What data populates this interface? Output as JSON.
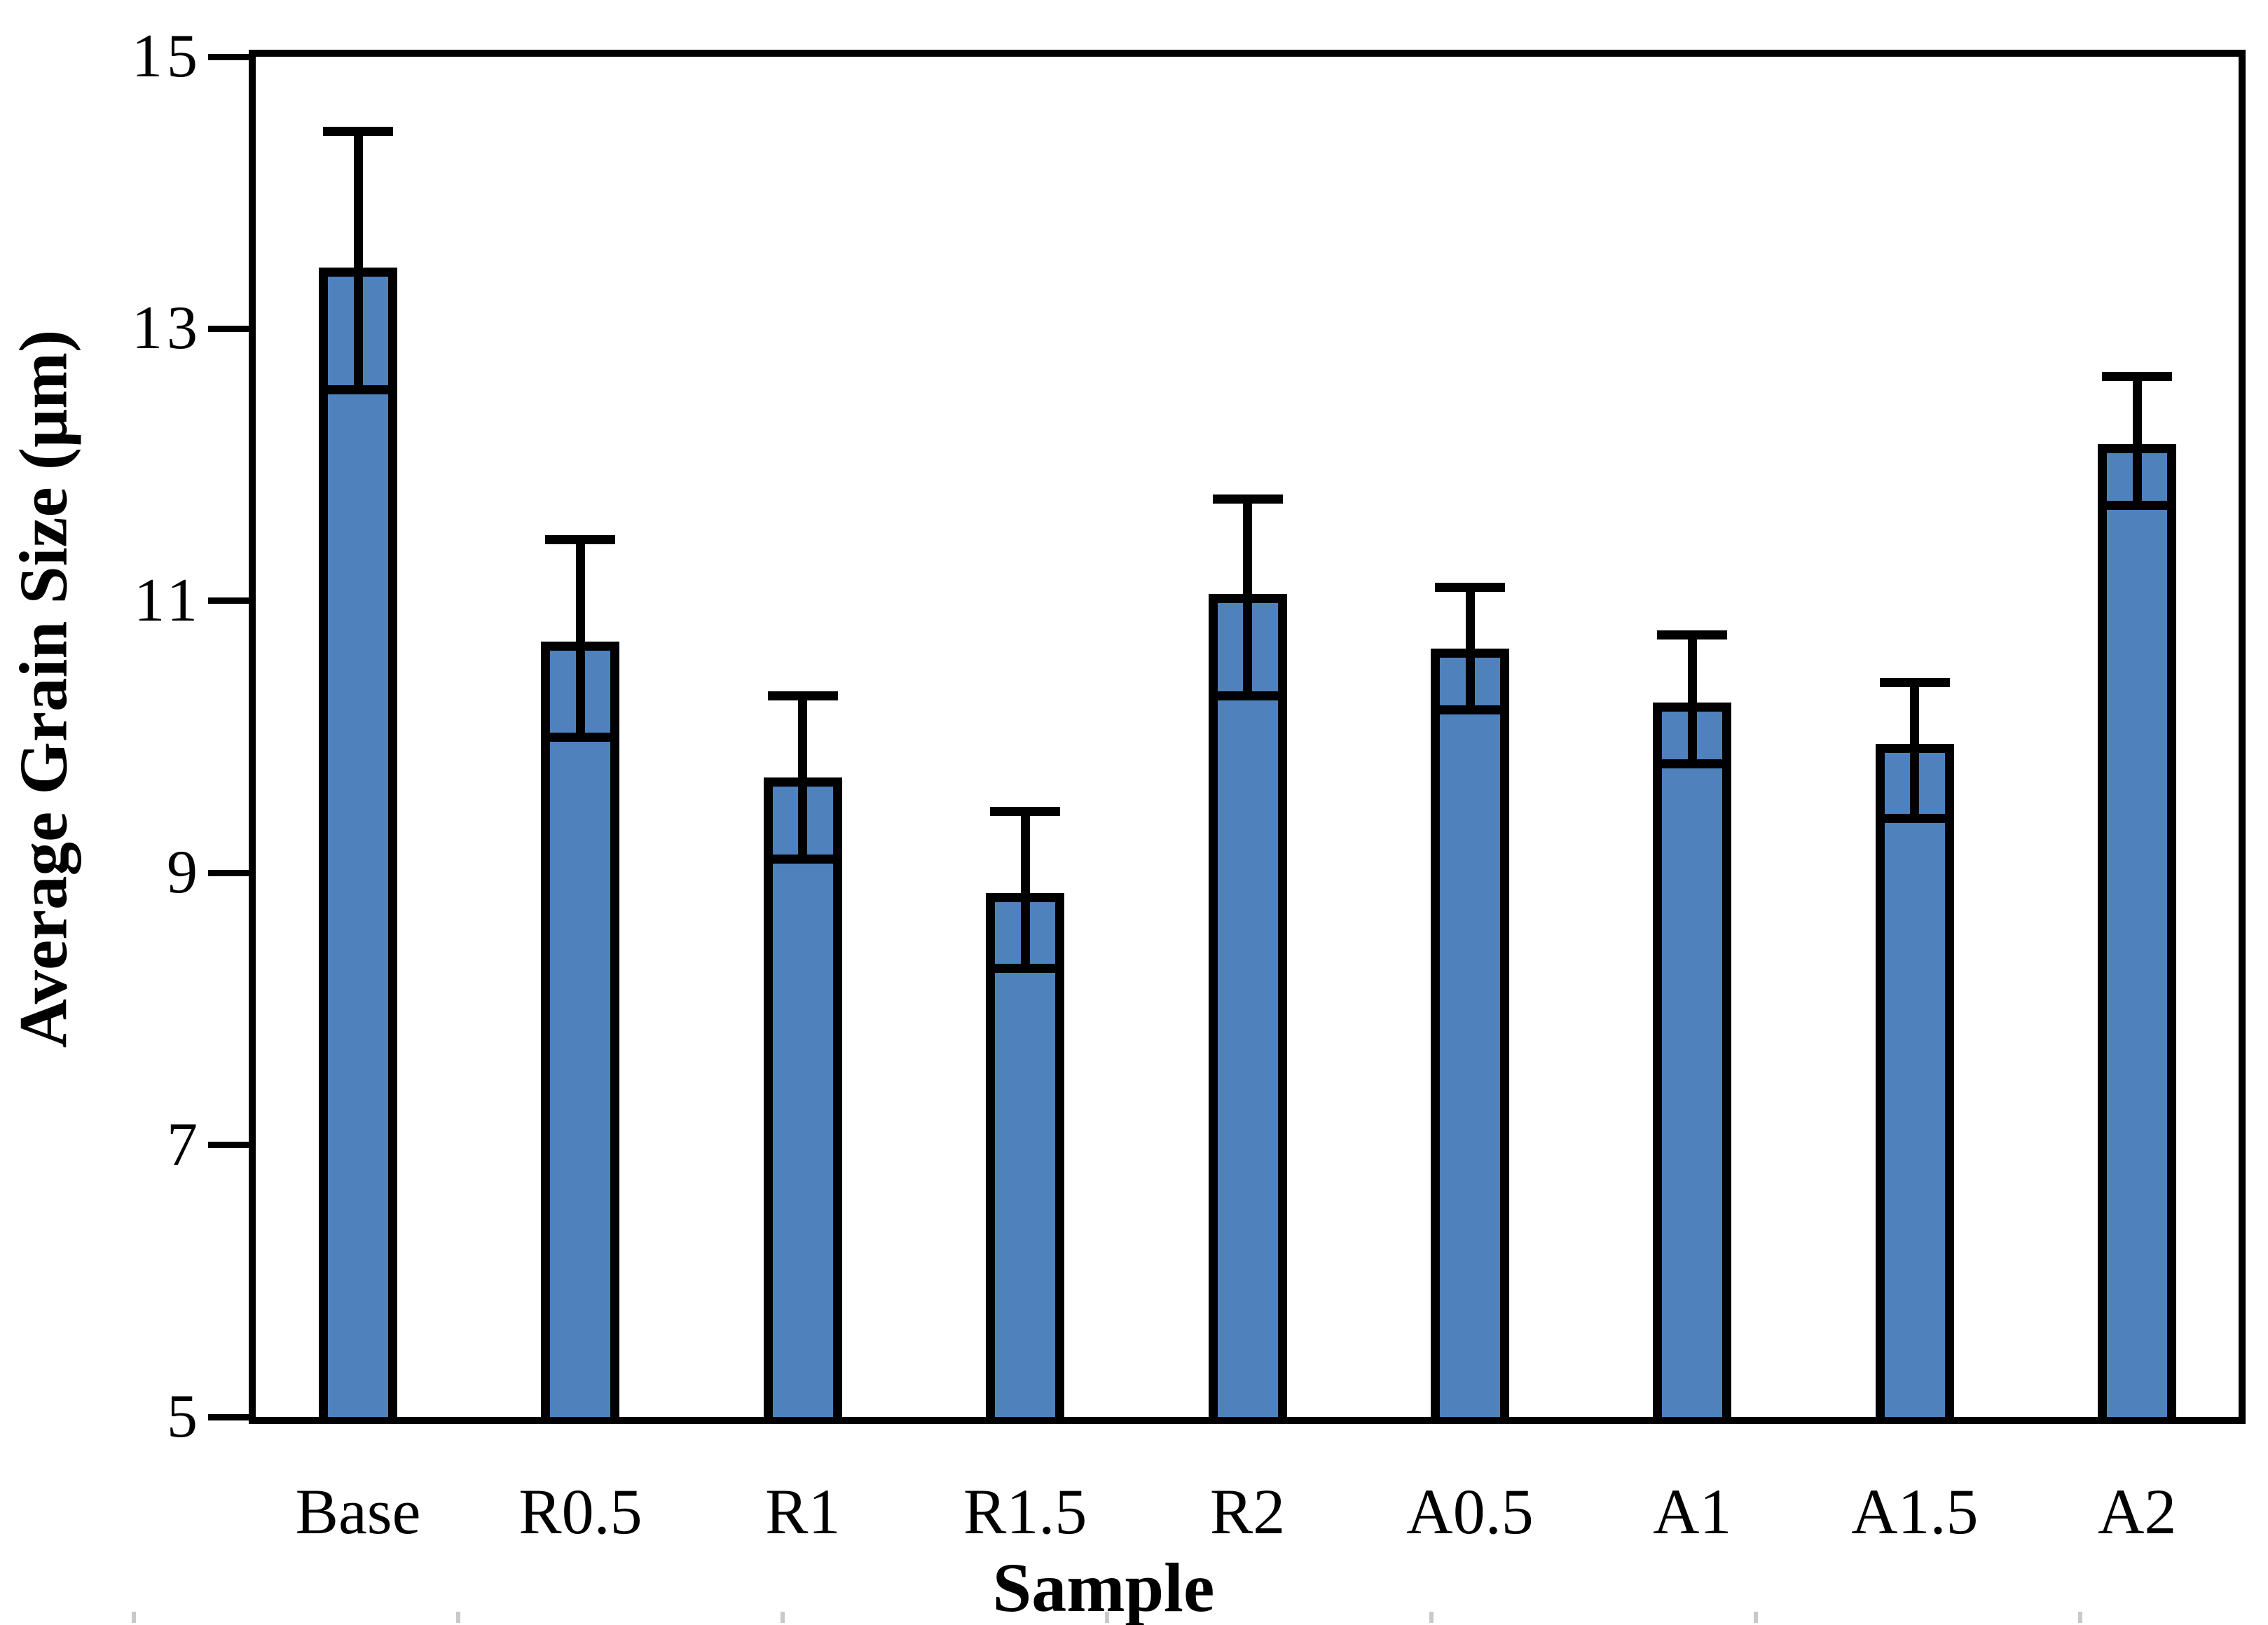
{
  "figure": {
    "background": "#ffffff"
  },
  "chart_data": {
    "type": "bar",
    "title": "",
    "xlabel": "Sample",
    "ylabel": "Average Grain Size (μm)",
    "categories": [
      "Base",
      "R0.5",
      "R1",
      "R1.5",
      "R2",
      "A0.5",
      "A1",
      "A1.5",
      "A2"
    ],
    "values": [
      13.45,
      10.7,
      9.7,
      8.85,
      11.05,
      10.65,
      10.25,
      9.95,
      12.15
    ],
    "error_up": [
      1.0,
      0.75,
      0.6,
      0.6,
      0.7,
      0.45,
      0.5,
      0.45,
      0.5
    ],
    "error_down": [
      0.9,
      0.7,
      0.6,
      0.55,
      0.75,
      0.45,
      0.45,
      0.55,
      0.45
    ],
    "ylim": [
      5,
      15
    ],
    "yticks": [
      5,
      7,
      9,
      11,
      13,
      15
    ],
    "grid": false,
    "legend": null,
    "bar_color": "#4F81BD",
    "bar_border_color": "#000000",
    "error_color": "#000000",
    "axis_color": "#000000",
    "artifact_dash_color": "#c9c9c9"
  }
}
